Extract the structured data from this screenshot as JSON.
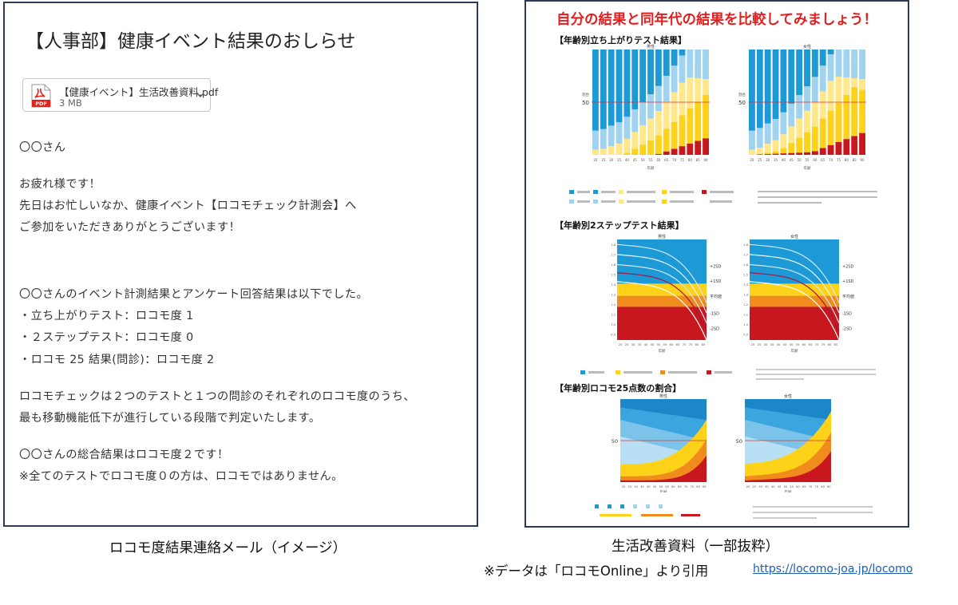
{
  "mail": {
    "subject": "【人事部】健康イベント結果のおしらせ",
    "attachment": {
      "name": "【健康イベント】生活改善資料.pdf",
      "size": "3 MB",
      "icon": "pdf-file-icon",
      "icon_label": "PDF"
    },
    "lines": [
      "〇〇さん",
      "お疲れ様です！",
      "先日はお忙しいなか、健康イベント【ロコモチェック計測会】へ",
      "ご参加をいただきありがとうございます！",
      "〇〇さんのイベント計測結果とアンケート回答結果は以下でした。",
      "・立ち上がりテスト：ロコモ度 1",
      "・２ステップテスト：ロコモ度 0",
      "・ロコモ 25 結果(問診)：ロコモ度 2",
      "ロコモチェックは２つのテストと１つの問診のそれぞれのロコモ度のうち、",
      "最も移動機能低下が進行している段階で判定いたします。",
      "〇〇さんの総合結果はロコモ度２です！",
      "※全てのテストでロコモ度０の方は、ロコモではありません。"
    ]
  },
  "captions": {
    "left": "ロコモ度結果連絡メール（イメージ）",
    "right": "生活改善資料（一部抜粋）",
    "source_note": "※データは「ロコモOnline」より引用",
    "source_url": "https://locomo-joa.jp/locomo"
  },
  "pdf": {
    "heading": "自分の結果と同年代の結果を比較してみましょう！",
    "sections": [
      "【年齢別立ち上がりテスト結果】",
      "【年齢別2ステップテスト結果】",
      "【年齢別ロコモ25点数の割合】"
    ],
    "chart_labels": {
      "male": "男性",
      "female": "女性",
      "age_axis": "年齢",
      "percent_axis": "割合",
      "fifty": "50",
      "sd_labels": [
        "+2SD",
        "+1SD",
        "平均値",
        "-1SD",
        "-2SD"
      ]
    },
    "colors": {
      "heading_red": "#e32020",
      "frame": "#2d3a55",
      "blue": "#1d9ad6",
      "light_blue": "#9fd3f0",
      "yellow": "#ffd21a",
      "orange": "#f08c1e",
      "red": "#c8171e",
      "link": "#1a5fb4"
    }
  }
}
